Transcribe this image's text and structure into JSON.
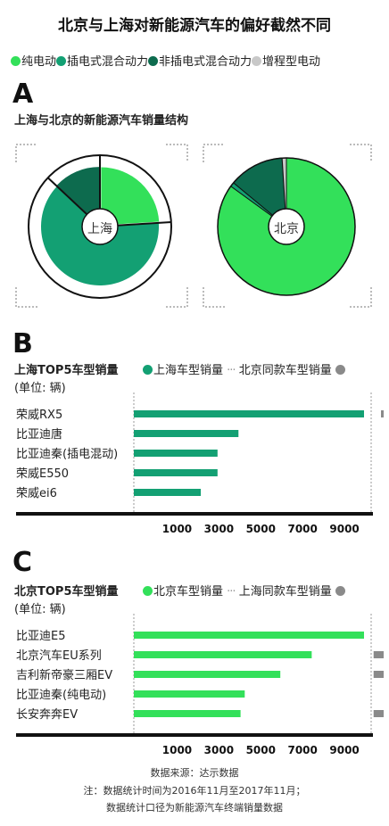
{
  "header": {
    "title": "北京与上海对新能源汽车的偏好截然不同"
  },
  "legend": {
    "items": [
      {
        "label": "纯电动",
        "color": "#33e05a"
      },
      {
        "label": "插电式混合动力",
        "color": "#13a073"
      },
      {
        "label": "非插电式混合动力",
        "color": "#0d6b4e"
      },
      {
        "label": "增程型电动",
        "color": "#c8c8c8"
      }
    ]
  },
  "section_a": {
    "letter": "A",
    "subtitle": "上海与北京的新能源汽车销量结构"
  },
  "section_b": {
    "letter": "B",
    "subtitle": "上海TOP5车型销量",
    "unit": "(单位: 辆)",
    "legend_primary": "上海车型销量",
    "legend_secondary": "北京同款车型销量"
  },
  "section_c": {
    "letter": "C",
    "subtitle": "北京TOP5车型销量",
    "unit": "(单位: 辆)",
    "legend_primary": "北京车型销量",
    "legend_secondary": "上海同款车型销量"
  },
  "footer": {
    "source": "数据来源：达示数据",
    "note_line1": "注：数据统计时间为2016年11月至2017年11月；",
    "note_line2": "数据统计口径为新能源汽车终端销量数据"
  },
  "chart_data": [
    {
      "type": "pie",
      "center_label": "上海",
      "labels": [
        "纯电动",
        "插电式混合动力",
        "非插电式混合动力"
      ],
      "values": [
        24,
        63,
        13
      ],
      "exploded": [
        "纯电动",
        "非插电式混合动力"
      ],
      "colors": [
        "#33e05a",
        "#13a073",
        "#0d6b4e"
      ]
    },
    {
      "type": "pie",
      "center_label": "北京",
      "labels": [
        "纯电动",
        "插电式混合动力",
        "非插电式混合动力",
        "增程型电动"
      ],
      "values": [
        85,
        1,
        13,
        1
      ],
      "colors": [
        "#33e05a",
        "#13a073",
        "#0d6b4e",
        "#c8c8c8"
      ]
    },
    {
      "type": "bar",
      "orientation": "horizontal",
      "categories": [
        "荣威RX5",
        "比亚迪唐",
        "比亚迪秦(插电混动)",
        "荣威E550",
        "荣威ei6"
      ],
      "series": [
        {
          "name": "上海车型销量",
          "values": [
            11000,
            5000,
            4000,
            4000,
            3200
          ],
          "color": "#13a073"
        },
        {
          "name": "北京同款车型销量",
          "values": [
            50,
            0,
            0,
            0,
            0
          ],
          "color": "#8a8a8a"
        }
      ],
      "xticks": [
        1000,
        3000,
        5000,
        7000,
        9000
      ],
      "xlim": [
        0,
        11000
      ]
    },
    {
      "type": "bar",
      "orientation": "horizontal",
      "categories": [
        "比亚迪E5",
        "北京汽车EU系列",
        "吉利新帝豪三厢EV",
        "比亚迪秦(纯电动)",
        "长安奔奔EV"
      ],
      "series": [
        {
          "name": "北京车型销量",
          "values": [
            11000,
            8500,
            7000,
            5300,
            5100
          ],
          "color": "#33e05a"
        },
        {
          "name": "上海同款车型销量",
          "values": [
            0,
            300,
            300,
            0,
            300
          ],
          "color": "#8a8a8a"
        }
      ],
      "xticks": [
        1000,
        3000,
        5000,
        7000,
        9000
      ],
      "xlim": [
        0,
        11000
      ]
    }
  ]
}
